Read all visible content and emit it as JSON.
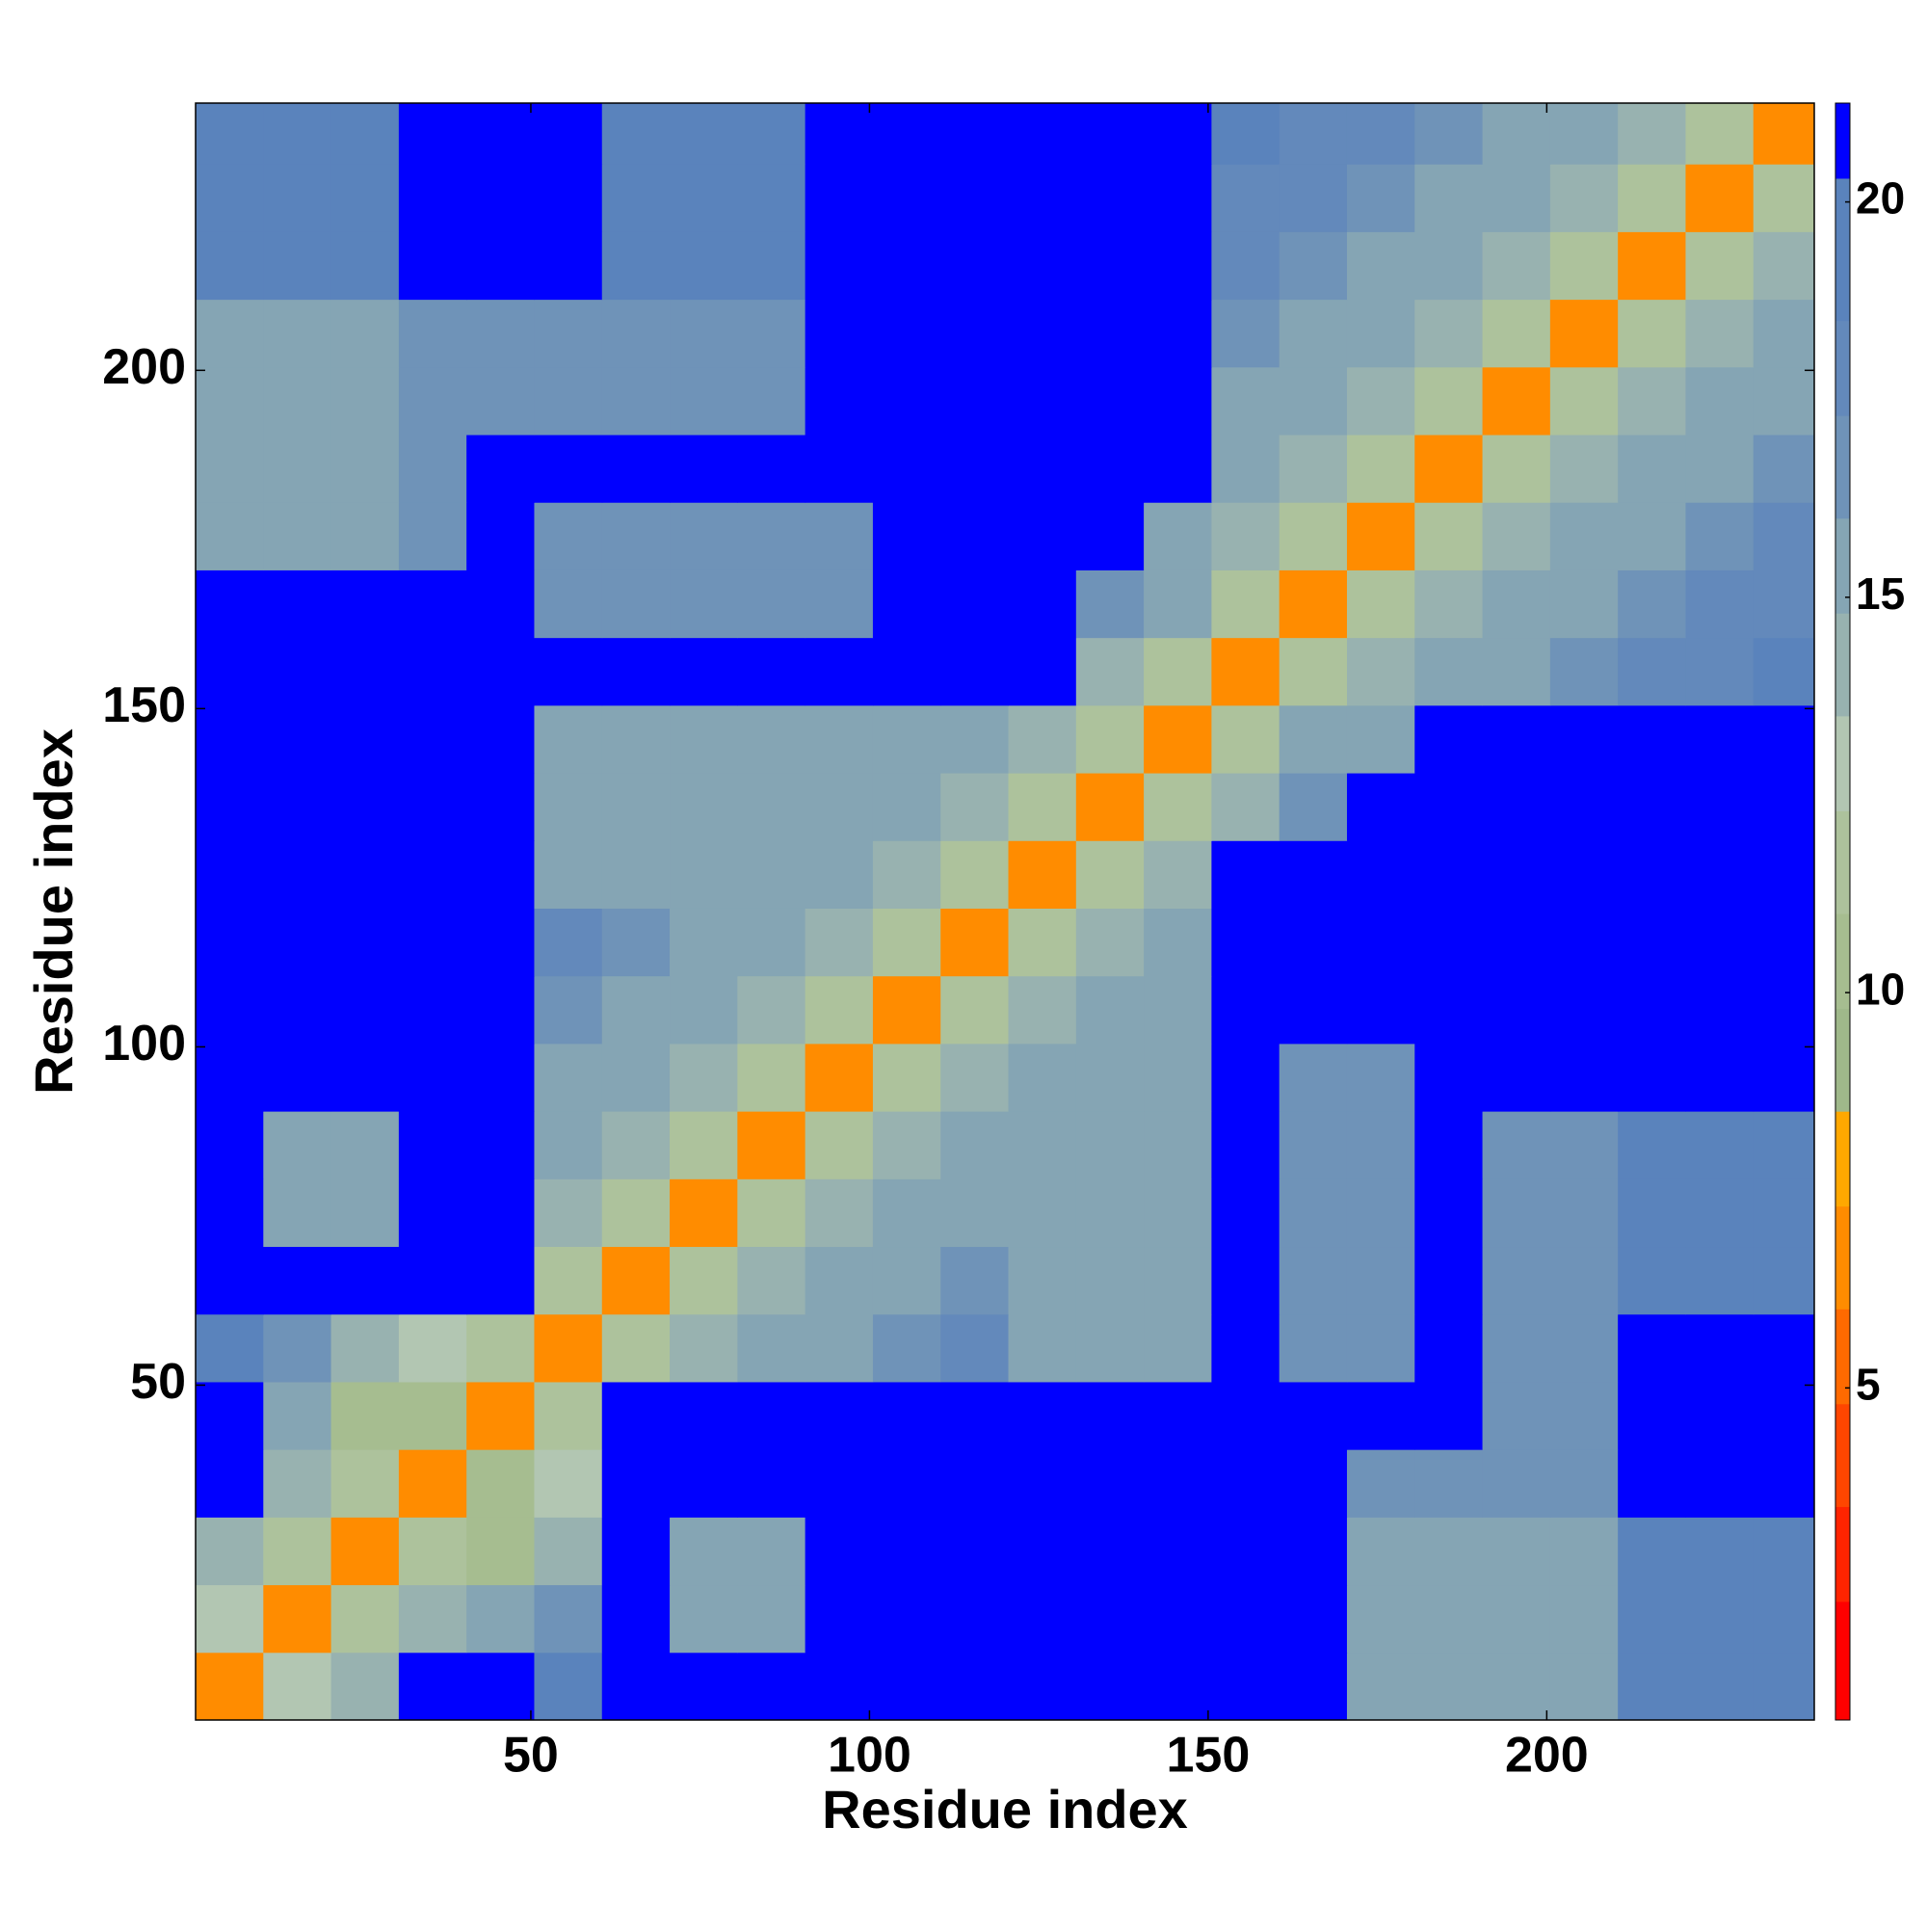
{
  "chart_data": {
    "type": "heatmap",
    "xlabel": "Residue index",
    "ylabel": "Residue index",
    "xlim": [
      0.5,
      239.5
    ],
    "ylim": [
      0.5,
      239.5
    ],
    "xticks": [
      50,
      100,
      150,
      200
    ],
    "yticks": [
      50,
      100,
      150,
      200
    ],
    "xbins": [
      0.5,
      10.5,
      20.5,
      30.5,
      40.5,
      50.5,
      60.5,
      70.5,
      80.5,
      90.5,
      100.5,
      110.5,
      120.5,
      130.5,
      140.5,
      150.5,
      160.5,
      170.5,
      180.5,
      190.5,
      200.5,
      210.5,
      220.5,
      230.5,
      239.5
    ],
    "ybins": [
      0.5,
      10.5,
      20.5,
      30.5,
      40.5,
      50.5,
      60.5,
      70.5,
      80.5,
      90.5,
      100.5,
      110.5,
      120.5,
      130.5,
      140.5,
      150.5,
      160.5,
      170.5,
      180.5,
      190.5,
      200.5,
      210.5,
      220.5,
      230.5,
      239.5
    ],
    "z": [
      [
        7,
        13,
        14,
        22,
        25,
        20,
        25,
        25,
        25,
        25,
        25,
        25,
        25,
        25,
        25,
        25,
        25,
        16,
        16,
        16,
        16,
        19,
        19,
        19
      ],
      [
        13,
        7,
        12,
        14,
        15,
        17,
        25,
        16,
        16,
        25,
        25,
        25,
        25,
        25,
        25,
        25,
        25,
        16,
        16,
        16,
        16,
        19,
        19,
        19
      ],
      [
        14,
        12,
        7,
        12,
        11,
        14,
        25,
        16,
        16,
        25,
        25,
        25,
        25,
        25,
        25,
        25,
        25,
        16,
        16,
        16,
        16,
        19,
        19,
        19
      ],
      [
        22,
        14,
        12,
        7,
        10,
        13,
        25,
        25,
        25,
        25,
        25,
        25,
        25,
        25,
        25,
        25,
        25,
        17,
        17,
        17,
        17,
        25,
        25,
        25
      ],
      [
        25,
        15,
        11,
        10,
        7,
        12,
        25,
        25,
        25,
        25,
        25,
        25,
        25,
        25,
        25,
        25,
        25,
        25,
        25,
        17,
        17,
        25,
        25,
        25
      ],
      [
        20,
        17,
        14,
        13,
        12,
        7,
        12,
        14,
        15,
        16,
        17,
        18,
        16,
        16,
        16,
        25,
        17,
        17,
        25,
        17,
        17,
        25,
        25,
        25
      ],
      [
        25,
        25,
        25,
        25,
        25,
        12,
        7,
        12,
        14,
        15,
        16,
        17,
        16,
        16,
        16,
        25,
        17,
        17,
        25,
        17,
        17,
        20,
        20,
        20
      ],
      [
        25,
        16,
        16,
        25,
        25,
        14,
        12,
        7,
        12,
        14,
        15,
        16,
        16,
        16,
        16,
        25,
        17,
        17,
        25,
        17,
        17,
        20,
        20,
        20
      ],
      [
        25,
        16,
        16,
        25,
        25,
        15,
        14,
        12,
        7,
        12,
        14,
        15,
        16,
        16,
        16,
        25,
        17,
        17,
        25,
        17,
        17,
        20,
        20,
        20
      ],
      [
        25,
        25,
        25,
        25,
        25,
        16,
        15,
        14,
        12,
        7,
        12,
        14,
        16,
        16,
        16,
        25,
        17,
        17,
        25,
        25,
        25,
        25,
        25,
        25
      ],
      [
        25,
        25,
        25,
        25,
        25,
        17,
        16,
        15,
        14,
        12,
        7,
        12,
        14,
        15,
        16,
        25,
        25,
        25,
        25,
        25,
        25,
        25,
        25,
        25
      ],
      [
        25,
        25,
        25,
        25,
        25,
        18,
        17,
        16,
        15,
        14,
        12,
        7,
        12,
        14,
        15,
        25,
        25,
        25,
        25,
        25,
        25,
        25,
        25,
        25
      ],
      [
        25,
        25,
        25,
        25,
        25,
        16,
        16,
        16,
        16,
        16,
        14,
        12,
        7,
        12,
        14,
        25,
        25,
        25,
        25,
        25,
        25,
        25,
        25,
        25
      ],
      [
        25,
        25,
        25,
        25,
        25,
        16,
        16,
        16,
        16,
        16,
        15,
        14,
        12,
        7,
        12,
        14,
        17,
        25,
        25,
        25,
        25,
        25,
        25,
        25
      ],
      [
        25,
        25,
        25,
        25,
        25,
        16,
        16,
        16,
        16,
        16,
        16,
        15,
        14,
        12,
        7,
        12,
        15,
        16,
        25,
        25,
        25,
        25,
        25,
        25
      ],
      [
        25,
        25,
        25,
        25,
        25,
        25,
        25,
        25,
        25,
        25,
        25,
        25,
        25,
        14,
        12,
        7,
        12,
        14,
        15,
        16,
        17,
        18,
        18,
        19
      ],
      [
        25,
        25,
        25,
        25,
        25,
        17,
        17,
        17,
        17,
        17,
        25,
        25,
        25,
        17,
        15,
        12,
        7,
        12,
        14,
        15,
        16,
        17,
        18,
        18
      ],
      [
        16,
        16,
        16,
        17,
        25,
        17,
        17,
        17,
        17,
        17,
        25,
        25,
        25,
        25,
        16,
        14,
        12,
        7,
        12,
        14,
        15,
        16,
        17,
        18
      ],
      [
        16,
        16,
        16,
        17,
        25,
        25,
        25,
        25,
        25,
        25,
        25,
        25,
        25,
        25,
        25,
        15,
        14,
        12,
        7,
        12,
        14,
        15,
        16,
        17
      ],
      [
        16,
        16,
        16,
        17,
        17,
        17,
        17,
        17,
        17,
        25,
        25,
        25,
        25,
        25,
        25,
        16,
        15,
        14,
        12,
        7,
        12,
        14,
        15,
        16
      ],
      [
        16,
        16,
        16,
        17,
        17,
        17,
        17,
        17,
        17,
        25,
        25,
        25,
        25,
        25,
        25,
        17,
        16,
        15,
        14,
        12,
        7,
        12,
        14,
        15
      ],
      [
        19,
        19,
        19,
        25,
        25,
        25,
        20,
        20,
        20,
        25,
        25,
        25,
        25,
        25,
        25,
        18,
        17,
        16,
        15,
        14,
        12,
        7,
        12,
        14
      ],
      [
        19,
        19,
        19,
        25,
        25,
        25,
        20,
        20,
        20,
        25,
        25,
        25,
        25,
        25,
        25,
        18,
        18,
        17,
        16,
        15,
        14,
        12,
        7,
        12
      ],
      [
        19,
        19,
        19,
        25,
        25,
        25,
        20,
        20,
        20,
        25,
        25,
        25,
        25,
        25,
        25,
        19,
        18,
        18,
        17,
        16,
        15,
        14,
        12,
        7
      ]
    ],
    "colorbar": {
      "lim": [
        0.8,
        21.25
      ],
      "ticks": [
        5,
        10,
        15,
        20
      ],
      "colorscale": [
        {
          "max": 2.3,
          "color": "#ff0000"
        },
        {
          "max": 3.5,
          "color": "#ff2400"
        },
        {
          "max": 4.8,
          "color": "#ff4600"
        },
        {
          "max": 6,
          "color": "#ff6a00"
        },
        {
          "max": 7.3,
          "color": "#ff8c00"
        },
        {
          "max": 8.5,
          "color": "#ffa800"
        },
        {
          "max": 9.8,
          "color": "#9fb88a"
        },
        {
          "max": 11,
          "color": "#a6bd90"
        },
        {
          "max": 12.3,
          "color": "#adc29c"
        },
        {
          "max": 13.5,
          "color": "#b2c6b2"
        },
        {
          "max": 14.8,
          "color": "#98b2b0"
        },
        {
          "max": 16,
          "color": "#85a5b4"
        },
        {
          "max": 17.3,
          "color": "#6f93b8"
        },
        {
          "max": 18.5,
          "color": "#6389bb"
        },
        {
          "max": 20.3,
          "color": "#5a83bc"
        },
        {
          "max": 21.25,
          "color": "#0000ff"
        }
      ]
    }
  }
}
